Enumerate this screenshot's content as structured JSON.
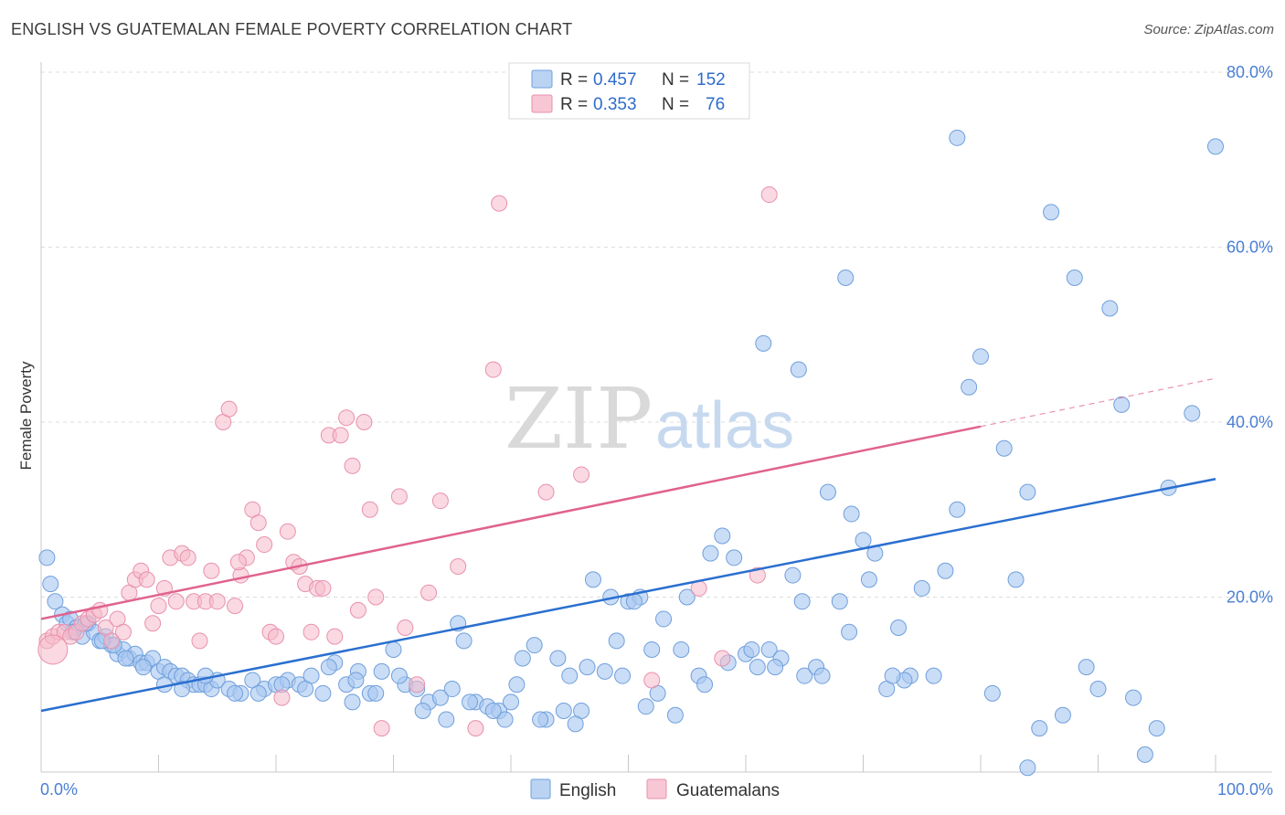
{
  "title": "ENGLISH VS GUATEMALAN FEMALE POVERTY CORRELATION CHART",
  "source": "Source: ZipAtlas.com",
  "watermark": {
    "part1": "ZIP",
    "part2": "atlas"
  },
  "colors": {
    "english_fill": "#a9c8f0",
    "english_stroke": "#6f9fdc",
    "english_line": "#2a6fcf",
    "guatemalan_fill": "#f6b9cb",
    "guatemalan_stroke": "#e891ad",
    "guatemalan_line": "#e0628f",
    "grid": "#dcdcdc",
    "tick_text": "#4a7fd4"
  },
  "legend": {
    "rows": [
      {
        "r_label": "R = ",
        "r_value": "0.457",
        "n_label": "N = ",
        "n_value": "152"
      },
      {
        "r_label": "R = ",
        "r_value": "0.353",
        "n_label": "N = ",
        "n_value": "76"
      }
    ]
  },
  "chart_data": {
    "type": "scatter",
    "ylabel": "Female Poverty",
    "xlim": [
      0,
      100
    ],
    "ylim": [
      0,
      80
    ],
    "x_tick_labels": [
      "0.0%",
      "100.0%"
    ],
    "y_ticks": [
      20,
      40,
      60,
      80
    ],
    "y_tick_labels": [
      "20.0%",
      "40.0%",
      "60.0%",
      "80.0%"
    ],
    "grid": true,
    "legend_position": "top-center",
    "series": [
      {
        "name": "English",
        "trend": {
          "x0": 0,
          "y0": 7.0,
          "x1": 100,
          "y1": 33.5
        },
        "points": [
          [
            0.5,
            24.5
          ],
          [
            0.8,
            21.5
          ],
          [
            1.2,
            19.5
          ],
          [
            1.8,
            18
          ],
          [
            2.2,
            17
          ],
          [
            2.5,
            17.5
          ],
          [
            3,
            16.5
          ],
          [
            3.5,
            15.5
          ],
          [
            4,
            17
          ],
          [
            4.5,
            16
          ],
          [
            5,
            15
          ],
          [
            5.5,
            15.5
          ],
          [
            6,
            14.5
          ],
          [
            6.5,
            13.5
          ],
          [
            7,
            14
          ],
          [
            7.5,
            13
          ],
          [
            8,
            13.5
          ],
          [
            8.5,
            12.5
          ],
          [
            9,
            12.5
          ],
          [
            9.5,
            13
          ],
          [
            10,
            11.5
          ],
          [
            10.5,
            12
          ],
          [
            11,
            11.5
          ],
          [
            11.5,
            11
          ],
          [
            12,
            11
          ],
          [
            12.5,
            10.5
          ],
          [
            13,
            10
          ],
          [
            13.5,
            10
          ],
          [
            14,
            10
          ],
          [
            14.5,
            9.5
          ],
          [
            15,
            10.5
          ],
          [
            16,
            9.5
          ],
          [
            17,
            9
          ],
          [
            18,
            10.5
          ],
          [
            19,
            9.5
          ],
          [
            20,
            10
          ],
          [
            21,
            10.5
          ],
          [
            22,
            10
          ],
          [
            23,
            11
          ],
          [
            24,
            9
          ],
          [
            25,
            12.5
          ],
          [
            26,
            10
          ],
          [
            27,
            11.5
          ],
          [
            28,
            9
          ],
          [
            29,
            11.5
          ],
          [
            30,
            14
          ],
          [
            31,
            10
          ],
          [
            32,
            9.5
          ],
          [
            33,
            8
          ],
          [
            34,
            8.5
          ],
          [
            35,
            9.5
          ],
          [
            36,
            15
          ],
          [
            37,
            8
          ],
          [
            38,
            7.5
          ],
          [
            39,
            7
          ],
          [
            40,
            8
          ],
          [
            41,
            13
          ],
          [
            42,
            14.5
          ],
          [
            43,
            6
          ],
          [
            44,
            13
          ],
          [
            45,
            11
          ],
          [
            46,
            7
          ],
          [
            47,
            22
          ],
          [
            48,
            11.5
          ],
          [
            49,
            15
          ],
          [
            50,
            19.5
          ],
          [
            51,
            20
          ],
          [
            52,
            14
          ],
          [
            53,
            17.5
          ],
          [
            54,
            6.5
          ],
          [
            55,
            20
          ],
          [
            56,
            11
          ],
          [
            57,
            25
          ],
          [
            58,
            27
          ],
          [
            59,
            24.5
          ],
          [
            60,
            13.5
          ],
          [
            61,
            12
          ],
          [
            62,
            14
          ],
          [
            63,
            13
          ],
          [
            64,
            22.5
          ],
          [
            65,
            11
          ],
          [
            66,
            12
          ],
          [
            67,
            32
          ],
          [
            68,
            19.5
          ],
          [
            69,
            29.5
          ],
          [
            70,
            26.5
          ],
          [
            71,
            25
          ],
          [
            72,
            9.5
          ],
          [
            73,
            16.5
          ],
          [
            74,
            11
          ],
          [
            75,
            21
          ],
          [
            76,
            11
          ],
          [
            77,
            23
          ],
          [
            78,
            30
          ],
          [
            79,
            44
          ],
          [
            80,
            47.5
          ],
          [
            81,
            9
          ],
          [
            82,
            37
          ],
          [
            83,
            22
          ],
          [
            84,
            32
          ],
          [
            85,
            5
          ],
          [
            86,
            64
          ],
          [
            87,
            6.5
          ],
          [
            88,
            56.5
          ],
          [
            89,
            12
          ],
          [
            90,
            9.5
          ],
          [
            91,
            53
          ],
          [
            92,
            42
          ],
          [
            93,
            8.5
          ],
          [
            94,
            2
          ],
          [
            95,
            5
          ],
          [
            96,
            32.5
          ],
          [
            98,
            41
          ],
          [
            100,
            71.5
          ],
          [
            61.5,
            49
          ],
          [
            64.5,
            46
          ],
          [
            68.5,
            56.5
          ],
          [
            78,
            72.5
          ],
          [
            84,
            0.5
          ],
          [
            73.5,
            10.5
          ],
          [
            51.5,
            7.5
          ],
          [
            49.5,
            11
          ],
          [
            45.5,
            5.5
          ],
          [
            39.5,
            6
          ],
          [
            35.5,
            17
          ],
          [
            26.5,
            8
          ],
          [
            24.5,
            12
          ],
          [
            22.5,
            9.5
          ],
          [
            20.5,
            10
          ],
          [
            18.5,
            9
          ],
          [
            16.5,
            9
          ],
          [
            14,
            11
          ],
          [
            12,
            9.5
          ],
          [
            10.5,
            10
          ],
          [
            8.7,
            12
          ],
          [
            7.2,
            13
          ],
          [
            6.2,
            14.5
          ],
          [
            5.2,
            15
          ],
          [
            3.8,
            17
          ],
          [
            2.7,
            16
          ],
          [
            44.5,
            7
          ],
          [
            42.5,
            6
          ],
          [
            40.5,
            10
          ],
          [
            38.5,
            7
          ],
          [
            36.5,
            8
          ],
          [
            34.5,
            6
          ],
          [
            32.5,
            7
          ],
          [
            30.5,
            11
          ],
          [
            28.5,
            9
          ],
          [
            26.8,
            10.5
          ],
          [
            58.5,
            12.5
          ],
          [
            56.5,
            10
          ],
          [
            54.5,
            14
          ],
          [
            52.5,
            9
          ],
          [
            50.5,
            19.5
          ],
          [
            48.5,
            20
          ],
          [
            46.5,
            12
          ],
          [
            60.5,
            14
          ],
          [
            62.5,
            12
          ],
          [
            64.8,
            19.5
          ],
          [
            66.5,
            11
          ],
          [
            68.8,
            16
          ],
          [
            70.5,
            22
          ],
          [
            72.5,
            11
          ]
        ]
      },
      {
        "name": "Guatemalans",
        "trend": {
          "x0": 0,
          "y0": 17.5,
          "x1": 80,
          "y1": 39.5,
          "x_end_dash": 100,
          "y_end_dash": 45.0
        },
        "points": [
          [
            0.5,
            15
          ],
          [
            1,
            15.5
          ],
          [
            1.5,
            16
          ],
          [
            2,
            16
          ],
          [
            2.5,
            15.5
          ],
          [
            3,
            16
          ],
          [
            3.5,
            17
          ],
          [
            4,
            17.5
          ],
          [
            4.5,
            18
          ],
          [
            5,
            18.5
          ],
          [
            5.5,
            16.5
          ],
          [
            6,
            15
          ],
          [
            6.5,
            17.5
          ],
          [
            7,
            16
          ],
          [
            7.5,
            20.5
          ],
          [
            8,
            22
          ],
          [
            8.5,
            23
          ],
          [
            9,
            22
          ],
          [
            9.5,
            17
          ],
          [
            10,
            19
          ],
          [
            10.5,
            21
          ],
          [
            11,
            24.5
          ],
          [
            11.5,
            19.5
          ],
          [
            12,
            25
          ],
          [
            12.5,
            24.5
          ],
          [
            13,
            19.5
          ],
          [
            13.5,
            15
          ],
          [
            14,
            19.5
          ],
          [
            14.5,
            23
          ],
          [
            15,
            19.5
          ],
          [
            15.5,
            40
          ],
          [
            16,
            41.5
          ],
          [
            16.5,
            19
          ],
          [
            17,
            22.5
          ],
          [
            17.5,
            24.5
          ],
          [
            18,
            30
          ],
          [
            18.5,
            28.5
          ],
          [
            19,
            26
          ],
          [
            19.5,
            16
          ],
          [
            20,
            15.5
          ],
          [
            20.5,
            8.5
          ],
          [
            21,
            27.5
          ],
          [
            21.5,
            24
          ],
          [
            22,
            23.5
          ],
          [
            22.5,
            21.5
          ],
          [
            23,
            16
          ],
          [
            23.5,
            21
          ],
          [
            24,
            21
          ],
          [
            24.5,
            38.5
          ],
          [
            25,
            15.5
          ],
          [
            25.5,
            38.5
          ],
          [
            26,
            40.5
          ],
          [
            26.5,
            35
          ],
          [
            27,
            18.5
          ],
          [
            27.5,
            40
          ],
          [
            28,
            30
          ],
          [
            28.5,
            20
          ],
          [
            29,
            5
          ],
          [
            30.5,
            31.5
          ],
          [
            31,
            16.5
          ],
          [
            32,
            10
          ],
          [
            33,
            20.5
          ],
          [
            34,
            31
          ],
          [
            35.5,
            23.5
          ],
          [
            37,
            5
          ],
          [
            38.5,
            46
          ],
          [
            39,
            65
          ],
          [
            43,
            32
          ],
          [
            46,
            34
          ],
          [
            52,
            10.5
          ],
          [
            58,
            13
          ],
          [
            56,
            21
          ],
          [
            62,
            66
          ],
          [
            61,
            22.5
          ],
          [
            1,
            14
          ],
          [
            16.8,
            24
          ]
        ]
      }
    ]
  }
}
